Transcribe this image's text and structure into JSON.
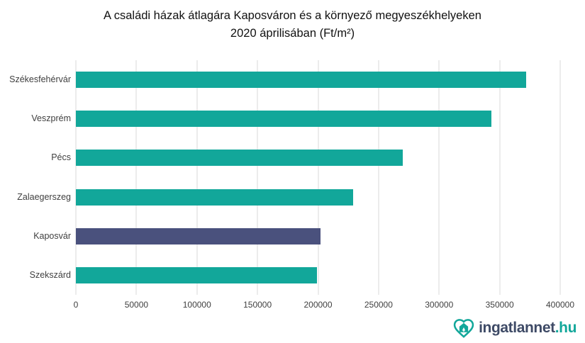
{
  "title": {
    "line1": "A családi házak átlagára Kaposváron és a környező megyeszékhelyeken",
    "line2": "2020 áprilisában (Ft/m²)"
  },
  "chart_data": {
    "type": "bar",
    "orientation": "horizontal",
    "title": "A családi házak átlagára Kaposváron és a környező megyeszékhelyeken 2020 áprilisában (Ft/m²)",
    "categories": [
      "Székesfehérvár",
      "Veszprém",
      "Pécs",
      "Zalaegerszeg",
      "Kaposvár",
      "Szekszárd"
    ],
    "values": [
      372000,
      343000,
      270000,
      229000,
      202000,
      199000
    ],
    "bar_colors": [
      "#12a79a",
      "#12a79a",
      "#12a79a",
      "#12a79a",
      "#4a517d",
      "#12a79a"
    ],
    "highlight_category": "Kaposvár",
    "xlabel": "",
    "ylabel": "",
    "xlim": [
      0,
      400000
    ],
    "x_ticks": [
      0,
      50000,
      100000,
      150000,
      200000,
      250000,
      300000,
      350000,
      400000
    ],
    "grid": true,
    "legend": false
  },
  "branding": {
    "icon": "heart-house-icon",
    "name": "ingatlannet",
    "tld": ".hu"
  },
  "colors": {
    "bar_teal": "#12a79a",
    "bar_navy": "#4a517d",
    "gridline": "#d9d9d9",
    "axis_text": "#3f3f3f",
    "title_text": "#111111",
    "logo_name_text": "#3e4a66",
    "logo_tld_text": "#12a79a"
  }
}
